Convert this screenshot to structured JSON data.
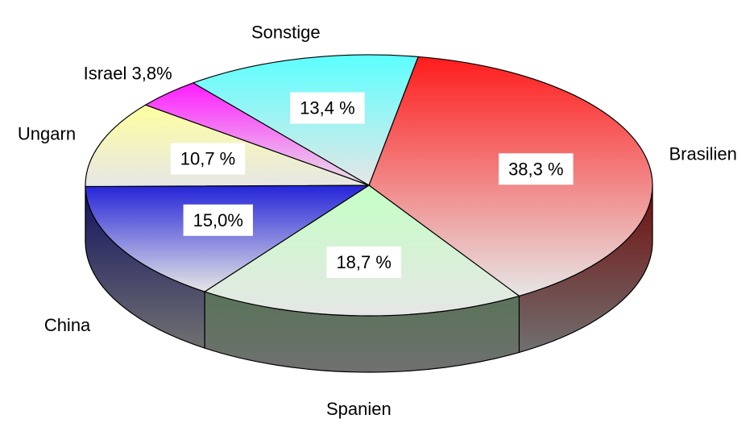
{
  "chart_data": {
    "type": "pie3d",
    "categories": [
      "Brasilien",
      "Spanien",
      "China",
      "Ungarn",
      "Israel 3,8%",
      "Sonstige"
    ],
    "values": [
      38.3,
      18.7,
      15.0,
      10.7,
      3.8,
      13.4
    ],
    "value_labels": [
      "38,3 %",
      "18,7 %",
      "15,0%",
      "10,7 %",
      null,
      "13,4 %"
    ],
    "colors": [
      "#ff1c1c",
      "#c4ffc4",
      "#2424d8",
      "#ffffa0",
      "#ff1cff",
      "#5cffff"
    ]
  }
}
